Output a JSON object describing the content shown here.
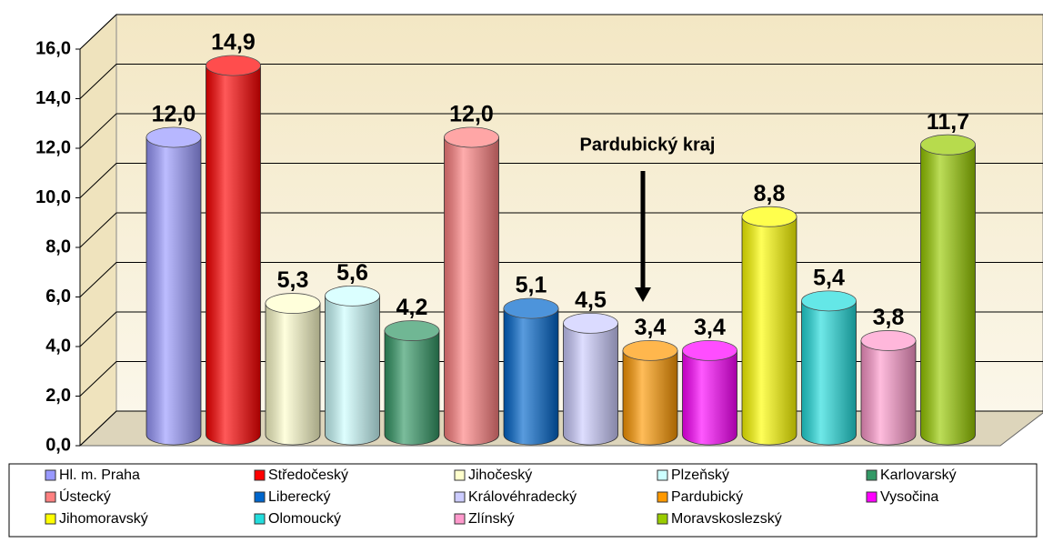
{
  "chart_data": {
    "type": "bar",
    "annotations": [
      {
        "text": "Pardubický kraj"
      }
    ],
    "series": [
      {
        "name": "Hl. m. Praha",
        "color": "#9999ff",
        "values": [
          12.0
        ],
        "value_labels": [
          "12,0"
        ]
      },
      {
        "name": "Středočeský",
        "color": "#ff0000",
        "values": [
          14.9
        ],
        "value_labels": [
          "14,9"
        ]
      },
      {
        "name": "Jihočeský",
        "color": "#ffffcc",
        "values": [
          5.3
        ],
        "value_labels": [
          "5,3"
        ]
      },
      {
        "name": "Plzeňský",
        "color": "#ccffff",
        "values": [
          5.6
        ],
        "value_labels": [
          "5,6"
        ]
      },
      {
        "name": "Karlovarský",
        "color": "#339966",
        "values": [
          4.2
        ],
        "value_labels": [
          "4,2"
        ]
      },
      {
        "name": "Ústecký",
        "color": "#ff8080",
        "values": [
          12.0
        ],
        "value_labels": [
          "12,0"
        ]
      },
      {
        "name": "Liberecký",
        "color": "#0066cc",
        "values": [
          5.1
        ],
        "value_labels": [
          "5,1"
        ]
      },
      {
        "name": "Královéhradecký",
        "color": "#ccccff",
        "values": [
          4.5
        ],
        "value_labels": [
          "4,5"
        ]
      },
      {
        "name": "Pardubický",
        "color": "#ff9900",
        "values": [
          3.4
        ],
        "value_labels": [
          "3,4"
        ]
      },
      {
        "name": "Vysočina",
        "color": "#ff00ff",
        "values": [
          3.4
        ],
        "value_labels": [
          "3,4"
        ]
      },
      {
        "name": "Jihomoravský",
        "color": "#ffff00",
        "values": [
          8.8
        ],
        "value_labels": [
          "8,8"
        ]
      },
      {
        "name": "Olomoucký",
        "color": "#22dddd",
        "values": [
          5.4
        ],
        "value_labels": [
          "5,4"
        ]
      },
      {
        "name": "Zlínský",
        "color": "#ff99cc",
        "values": [
          3.8
        ],
        "value_labels": [
          "3,8"
        ]
      },
      {
        "name": "Moravskoslezský",
        "color": "#99cc00",
        "values": [
          11.7
        ],
        "value_labels": [
          "11,7"
        ]
      }
    ],
    "ylim": [
      0,
      16
    ],
    "yticks": [
      {
        "value": 0,
        "label": "0,0"
      },
      {
        "value": 2,
        "label": "2,0"
      },
      {
        "value": 4,
        "label": "4,0"
      },
      {
        "value": 6,
        "label": "6,0"
      },
      {
        "value": 8,
        "label": "8,0"
      },
      {
        "value": 10,
        "label": "10,0"
      },
      {
        "value": 12,
        "label": "12,0"
      },
      {
        "value": 14,
        "label": "14,0"
      },
      {
        "value": 16,
        "label": "16,0"
      }
    ],
    "grid": true
  }
}
